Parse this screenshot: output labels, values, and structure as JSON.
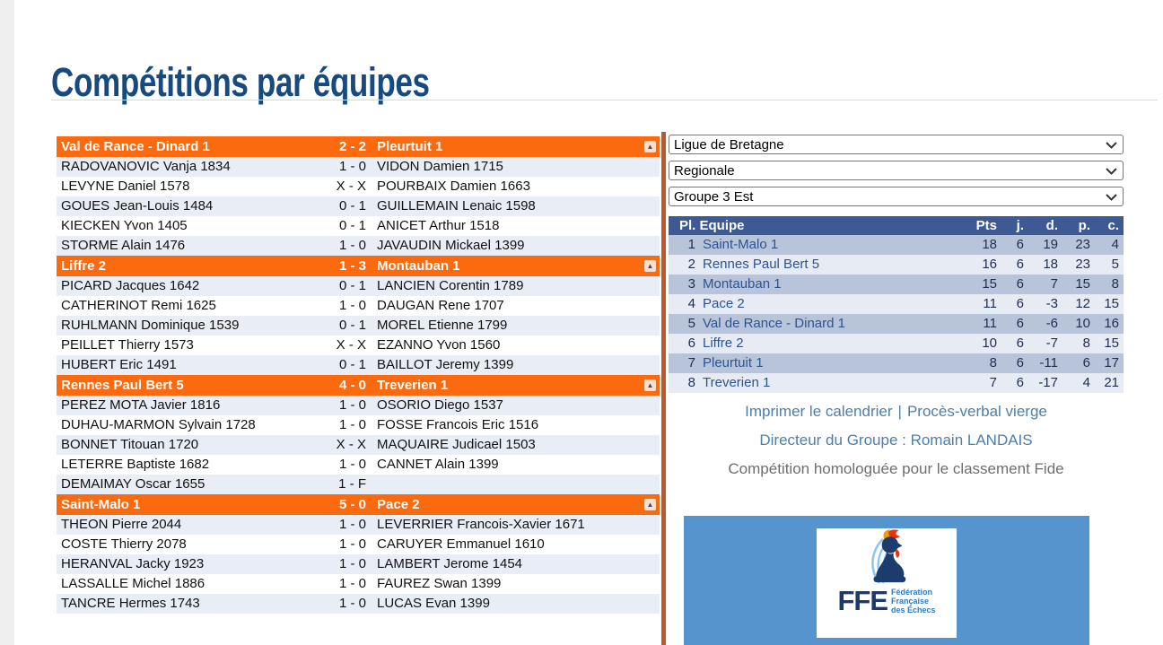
{
  "page": {
    "title": "Compétitions par équipes"
  },
  "filters": {
    "league": "Ligue de Bretagne",
    "division": "Regionale",
    "group": "Groupe 3 Est"
  },
  "matches": [
    {
      "home": "Val de Rance - Dinard 1",
      "score": "2 - 2",
      "away": "Pleurtuit 1",
      "boards": [
        {
          "home": "RADOVANOVIC Vanja 1834",
          "result": "1 - 0",
          "away": "VIDON Damien 1715"
        },
        {
          "home": "LEVYNE Daniel 1578",
          "result": "X - X",
          "away": "POURBAIX Damien 1663"
        },
        {
          "home": "GOUES Jean-Louis 1484",
          "result": "0 - 1",
          "away": "GUILLEMAIN Lenaic 1598"
        },
        {
          "home": "KIECKEN Yvon 1405",
          "result": "0 - 1",
          "away": "ANICET Arthur 1518"
        },
        {
          "home": "STORME Alain 1476",
          "result": "1 - 0",
          "away": "JAVAUDIN Mickael 1399"
        }
      ]
    },
    {
      "home": "Liffre 2",
      "score": "1 - 3",
      "away": "Montauban 1",
      "boards": [
        {
          "home": "PICARD Jacques 1642",
          "result": "0 - 1",
          "away": "LANCIEN Corentin 1789"
        },
        {
          "home": "CATHERINOT Remi 1625",
          "result": "1 - 0",
          "away": "DAUGAN Rene 1707"
        },
        {
          "home": "RUHLMANN Dominique 1539",
          "result": "0 - 1",
          "away": "MOREL Etienne 1799"
        },
        {
          "home": "PEILLET Thierry 1573",
          "result": "X - X",
          "away": "EZANNO Yvon 1560"
        },
        {
          "home": "HUBERT Eric 1491",
          "result": "0 - 1",
          "away": "BAILLOT Jeremy 1399"
        }
      ]
    },
    {
      "home": "Rennes Paul Bert 5",
      "score": "4 - 0",
      "away": "Treverien 1",
      "boards": [
        {
          "home": "PEREZ MOTA Javier 1816",
          "result": "1 - 0",
          "away": "OSORIO Diego 1537"
        },
        {
          "home": "DUHAU-MARMON Sylvain 1728",
          "result": "1 - 0",
          "away": "FOSSE Francois Eric 1516"
        },
        {
          "home": "BONNET Titouan 1720",
          "result": "X - X",
          "away": "MAQUAIRE Judicael 1503"
        },
        {
          "home": "LETERRE Baptiste 1682",
          "result": "1 - 0",
          "away": "CANNET Alain 1399"
        },
        {
          "home": "DEMAIMAY Oscar 1655",
          "result": "1 - F",
          "away": ""
        }
      ]
    },
    {
      "home": "Saint-Malo 1",
      "score": "5 - 0",
      "away": "Pace 2",
      "boards": [
        {
          "home": "THEON Pierre 2044",
          "result": "1 - 0",
          "away": "LEVERRIER Francois-Xavier 1671"
        },
        {
          "home": "COSTE Thierry 2078",
          "result": "1 - 0",
          "away": "CARUYER Emmanuel 1610"
        },
        {
          "home": "HERANVAL Jacky 1923",
          "result": "1 - 0",
          "away": "LAMBERT Jerome 1454"
        },
        {
          "home": "LASSALLE Michel 1886",
          "result": "1 - 0",
          "away": "FAUREZ Swan 1399"
        },
        {
          "home": "TANCRE Hermes 1743",
          "result": "1 - 0",
          "away": "LUCAS Evan 1399"
        }
      ]
    }
  ],
  "standings": {
    "headers": {
      "place_team": "Pl. Equipe",
      "pts": "Pts",
      "j": "j.",
      "d": "d.",
      "p": "p.",
      "c": "c."
    },
    "rows": [
      {
        "rank": "1",
        "team": "Saint-Malo 1",
        "pts": "18",
        "j": "6",
        "d": "19",
        "p": "23",
        "c": "4"
      },
      {
        "rank": "2",
        "team": "Rennes Paul Bert 5",
        "pts": "16",
        "j": "6",
        "d": "18",
        "p": "23",
        "c": "5"
      },
      {
        "rank": "3",
        "team": "Montauban 1",
        "pts": "15",
        "j": "6",
        "d": "7",
        "p": "15",
        "c": "8"
      },
      {
        "rank": "4",
        "team": "Pace 2",
        "pts": "11",
        "j": "6",
        "d": "-3",
        "p": "12",
        "c": "15"
      },
      {
        "rank": "5",
        "team": "Val de Rance - Dinard 1",
        "pts": "11",
        "j": "6",
        "d": "-6",
        "p": "10",
        "c": "16"
      },
      {
        "rank": "6",
        "team": "Liffre 2",
        "pts": "10",
        "j": "6",
        "d": "-7",
        "p": "8",
        "c": "15"
      },
      {
        "rank": "7",
        "team": "Pleurtuit 1",
        "pts": "8",
        "j": "6",
        "d": "-11",
        "p": "6",
        "c": "17"
      },
      {
        "rank": "8",
        "team": "Treverien 1",
        "pts": "7",
        "j": "6",
        "d": "-17",
        "p": "4",
        "c": "21"
      }
    ]
  },
  "footer": {
    "print_calendar": "Imprimer le calendrier",
    "separator": "|",
    "blank_report": "Procès-verbal vierge",
    "director": "Directeur du Groupe : Romain LANDAIS",
    "fide_note": "Compétition homologuée pour le classement Fide"
  },
  "logo": {
    "abbr": "FFE",
    "line1": "Fédération",
    "line2": "Française",
    "line3": "des Échecs"
  },
  "icons": {
    "dropdown": "chevron-down-icon",
    "match_header": "triangle-up-icon"
  },
  "colors": {
    "accent": "#fb6a0e",
    "divider": "#c2572b",
    "table_header": "#3d5a94",
    "row_dark": "#b8c4d9",
    "row_light": "#e7ebf3",
    "board_row_alt": "#e9edf6",
    "banner_blue": "#5694ce",
    "link_blue": "#4c7fa9",
    "title_blue": "#174a7f",
    "logo_navy": "#1b3a6b"
  }
}
